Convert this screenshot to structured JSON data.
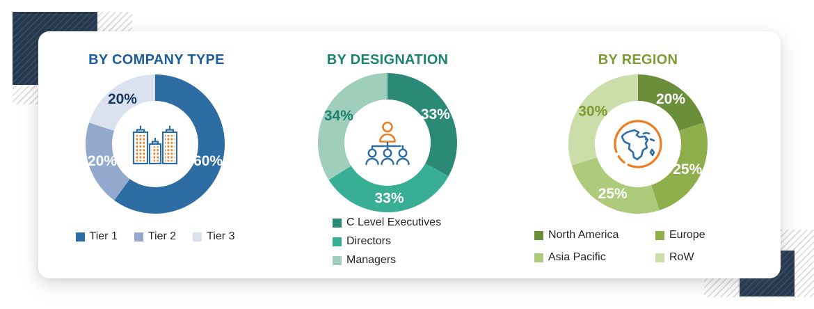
{
  "chart_data": [
    {
      "type": "pie",
      "variant": "donut",
      "title": "BY COMPANY TYPE",
      "title_color": "#1E5C9A",
      "center_icon": "buildings-icon",
      "categories": [
        "Tier 1",
        "Tier 2",
        "Tier 3"
      ],
      "values": [
        60,
        20,
        20
      ],
      "labels": [
        "60%",
        "20%",
        "20%"
      ],
      "colors": [
        "#2E6DA4",
        "#93A9CE",
        "#DAE1EF"
      ],
      "label_colors": [
        "#FFFFFF",
        "#FFFFFF",
        "#17375E"
      ],
      "legend_position": "bottom-row",
      "start_angle_deg": 0,
      "direction": "clockwise"
    },
    {
      "type": "pie",
      "variant": "donut",
      "title": "BY DESIGNATION",
      "title_color": "#1B8372",
      "center_icon": "org-chart-icon",
      "categories": [
        "C Level Executives",
        "Directors",
        "Managers"
      ],
      "values": [
        33,
        33,
        34
      ],
      "labels": [
        "33%",
        "33%",
        "34%"
      ],
      "colors": [
        "#2A8A76",
        "#38AE94",
        "#9FCEBA"
      ],
      "label_colors": [
        "#FFFFFF",
        "#FFFFFF",
        "#1B8372"
      ],
      "legend_position": "bottom-column",
      "start_angle_deg": 0,
      "direction": "clockwise"
    },
    {
      "type": "pie",
      "variant": "donut",
      "title": "BY REGION",
      "title_color": "#7C9C33",
      "center_icon": "globe-icon",
      "categories": [
        "North America",
        "Europe",
        "Asia Pacific",
        "RoW"
      ],
      "values": [
        20,
        25,
        25,
        30
      ],
      "labels": [
        "20%",
        "25%",
        "25%",
        "30%"
      ],
      "colors": [
        "#6B8E3A",
        "#8EAE4B",
        "#AECB7B",
        "#CBDEA9"
      ],
      "label_colors": [
        "#FFFFFF",
        "#FFFFFF",
        "#FFFFFF",
        "#7C9C33"
      ],
      "legend_position": "bottom-grid-2col",
      "start_angle_deg": 0,
      "direction": "clockwise"
    }
  ],
  "icon_colors": {
    "outline_blue": "#2E6DA4",
    "accent_orange": "#EE7D22"
  }
}
